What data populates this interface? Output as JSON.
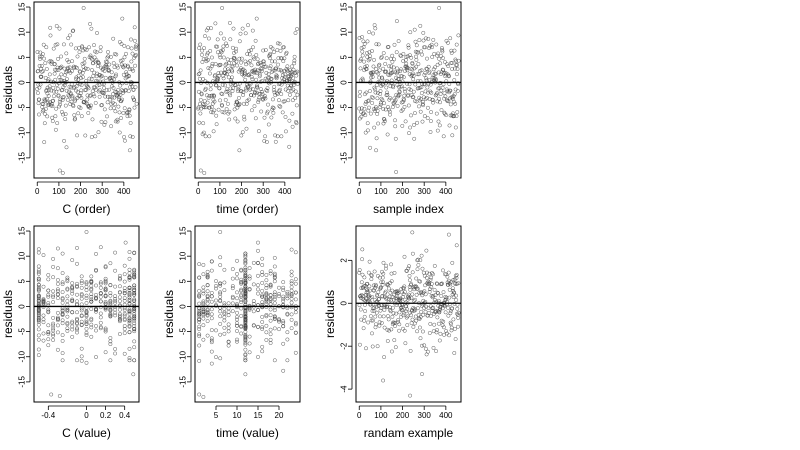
{
  "chart_data": [
    {
      "type": "scatter",
      "xlabel": "C (order)",
      "ylabel": "residuals",
      "xlim": [
        -15,
        470
      ],
      "ylim": [
        -19,
        16
      ],
      "xticks": [
        0,
        100,
        200,
        300,
        400
      ],
      "yticks": [
        -15,
        -10,
        -5,
        0,
        5,
        10,
        15
      ],
      "hline": 0,
      "n_points": 460,
      "point_color": "#404040",
      "seed": 11,
      "x_mode": "index",
      "spread": 4.7,
      "highlights": [
        {
          "x": 104,
          "y": -17.5
        },
        {
          "x": 118,
          "y": -18.0
        },
        {
          "x": 428,
          "y": -13.5
        },
        {
          "x": 214,
          "y": 14.8
        },
        {
          "x": 393,
          "y": 12.7
        },
        {
          "x": 135,
          "y": -12.9
        }
      ]
    },
    {
      "type": "scatter",
      "xlabel": "time (order)",
      "ylabel": "residuals",
      "xlim": [
        -15,
        470
      ],
      "ylim": [
        -19,
        16
      ],
      "xticks": [
        0,
        100,
        200,
        300,
        400
      ],
      "yticks": [
        -15,
        -10,
        -5,
        0,
        5,
        10,
        15
      ],
      "hline": 0,
      "n_points": 460,
      "point_color": "#404040",
      "seed": 23,
      "x_mode": "index",
      "spread": 4.7,
      "highlights": [
        {
          "x": 12,
          "y": -17.5
        },
        {
          "x": 28,
          "y": -18.0
        },
        {
          "x": 190,
          "y": -13.5
        },
        {
          "x": 110,
          "y": 14.8
        },
        {
          "x": 270,
          "y": 12.7
        },
        {
          "x": 420,
          "y": -12.8
        }
      ]
    },
    {
      "type": "scatter",
      "xlabel": "sample index",
      "ylabel": "residuals",
      "xlim": [
        -15,
        470
      ],
      "ylim": [
        -19,
        16
      ],
      "xticks": [
        0,
        100,
        200,
        300,
        400
      ],
      "yticks": [
        -15,
        -10,
        -5,
        0,
        5,
        10,
        15
      ],
      "hline": 0,
      "n_points": 460,
      "point_color": "#404040",
      "seed": 37,
      "x_mode": "index",
      "spread": 4.7,
      "highlights": [
        {
          "x": 50,
          "y": -13.0
        },
        {
          "x": 78,
          "y": -13.5
        },
        {
          "x": 170,
          "y": -17.8
        },
        {
          "x": 369,
          "y": 14.8
        },
        {
          "x": 174,
          "y": 12.2
        },
        {
          "x": 430,
          "y": -10.5
        }
      ]
    },
    {
      "type": "scatter",
      "xlabel": "C (value)",
      "ylabel": "residuals",
      "xlim": [
        -0.55,
        0.55
      ],
      "ylim": [
        -19,
        16
      ],
      "xticks": [
        -0.4,
        0.0,
        0.2,
        0.4
      ],
      "yticks": [
        -15,
        -10,
        -5,
        0,
        5,
        10,
        15
      ],
      "hline": 0,
      "n_points": 460,
      "point_color": "#404040",
      "seed": 53,
      "x_mode": "discrete",
      "x_values": [
        -0.5,
        -0.45,
        -0.4,
        -0.35,
        -0.3,
        -0.25,
        -0.2,
        -0.15,
        -0.1,
        -0.05,
        0.0,
        0.05,
        0.1,
        0.15,
        0.2,
        0.25,
        0.3,
        0.35,
        0.4,
        0.45,
        0.5
      ],
      "heavy_values": [
        -0.5,
        0.45,
        0.5
      ],
      "spread": 4.7,
      "highlights": [
        {
          "x": -0.37,
          "y": -17.5
        },
        {
          "x": -0.28,
          "y": -17.8
        },
        {
          "x": 0.49,
          "y": -13.5
        },
        {
          "x": 0.0,
          "y": 14.8
        },
        {
          "x": 0.41,
          "y": 12.7
        }
      ]
    },
    {
      "type": "scatter",
      "xlabel": "time (value)",
      "ylabel": "residuals",
      "xlim": [
        0,
        25
      ],
      "ylim": [
        -19,
        16
      ],
      "xticks": [
        5,
        10,
        15,
        20
      ],
      "yticks": [
        -15,
        -10,
        -5,
        0,
        5,
        10,
        15
      ],
      "hline": 0,
      "n_points": 460,
      "point_color": "#404040",
      "seed": 71,
      "x_mode": "discrete",
      "x_values": [
        1,
        2,
        3,
        4,
        5,
        6,
        7,
        8,
        9,
        10,
        11,
        12,
        13,
        14,
        15,
        16,
        17,
        18,
        19,
        20,
        21,
        22,
        23,
        24
      ],
      "heavy_values": [
        12
      ],
      "spread": 4.7,
      "highlights": [
        {
          "x": 1,
          "y": -17.5
        },
        {
          "x": 2,
          "y": -18.0
        },
        {
          "x": 12,
          "y": -13.5
        },
        {
          "x": 6,
          "y": 14.8
        },
        {
          "x": 15,
          "y": 12.7
        },
        {
          "x": 21,
          "y": -12.8
        }
      ]
    },
    {
      "type": "scatter",
      "xlabel": "randam example",
      "ylabel": "residuals",
      "xlim": [
        -15,
        470
      ],
      "ylim": [
        -4.6,
        3.6
      ],
      "xticks": [
        0,
        100,
        200,
        300,
        400
      ],
      "yticks": [
        -4,
        -2,
        0,
        2
      ],
      "hline": 0,
      "n_points": 460,
      "point_color": "#404040",
      "seed": 97,
      "x_mode": "index",
      "spread": 1.0,
      "highlights": [
        {
          "x": 235,
          "y": -4.3
        },
        {
          "x": 110,
          "y": -3.6
        },
        {
          "x": 290,
          "y": -3.3
        },
        {
          "x": 245,
          "y": 3.3
        },
        {
          "x": 414,
          "y": 3.2
        },
        {
          "x": 450,
          "y": 2.7
        }
      ]
    }
  ]
}
